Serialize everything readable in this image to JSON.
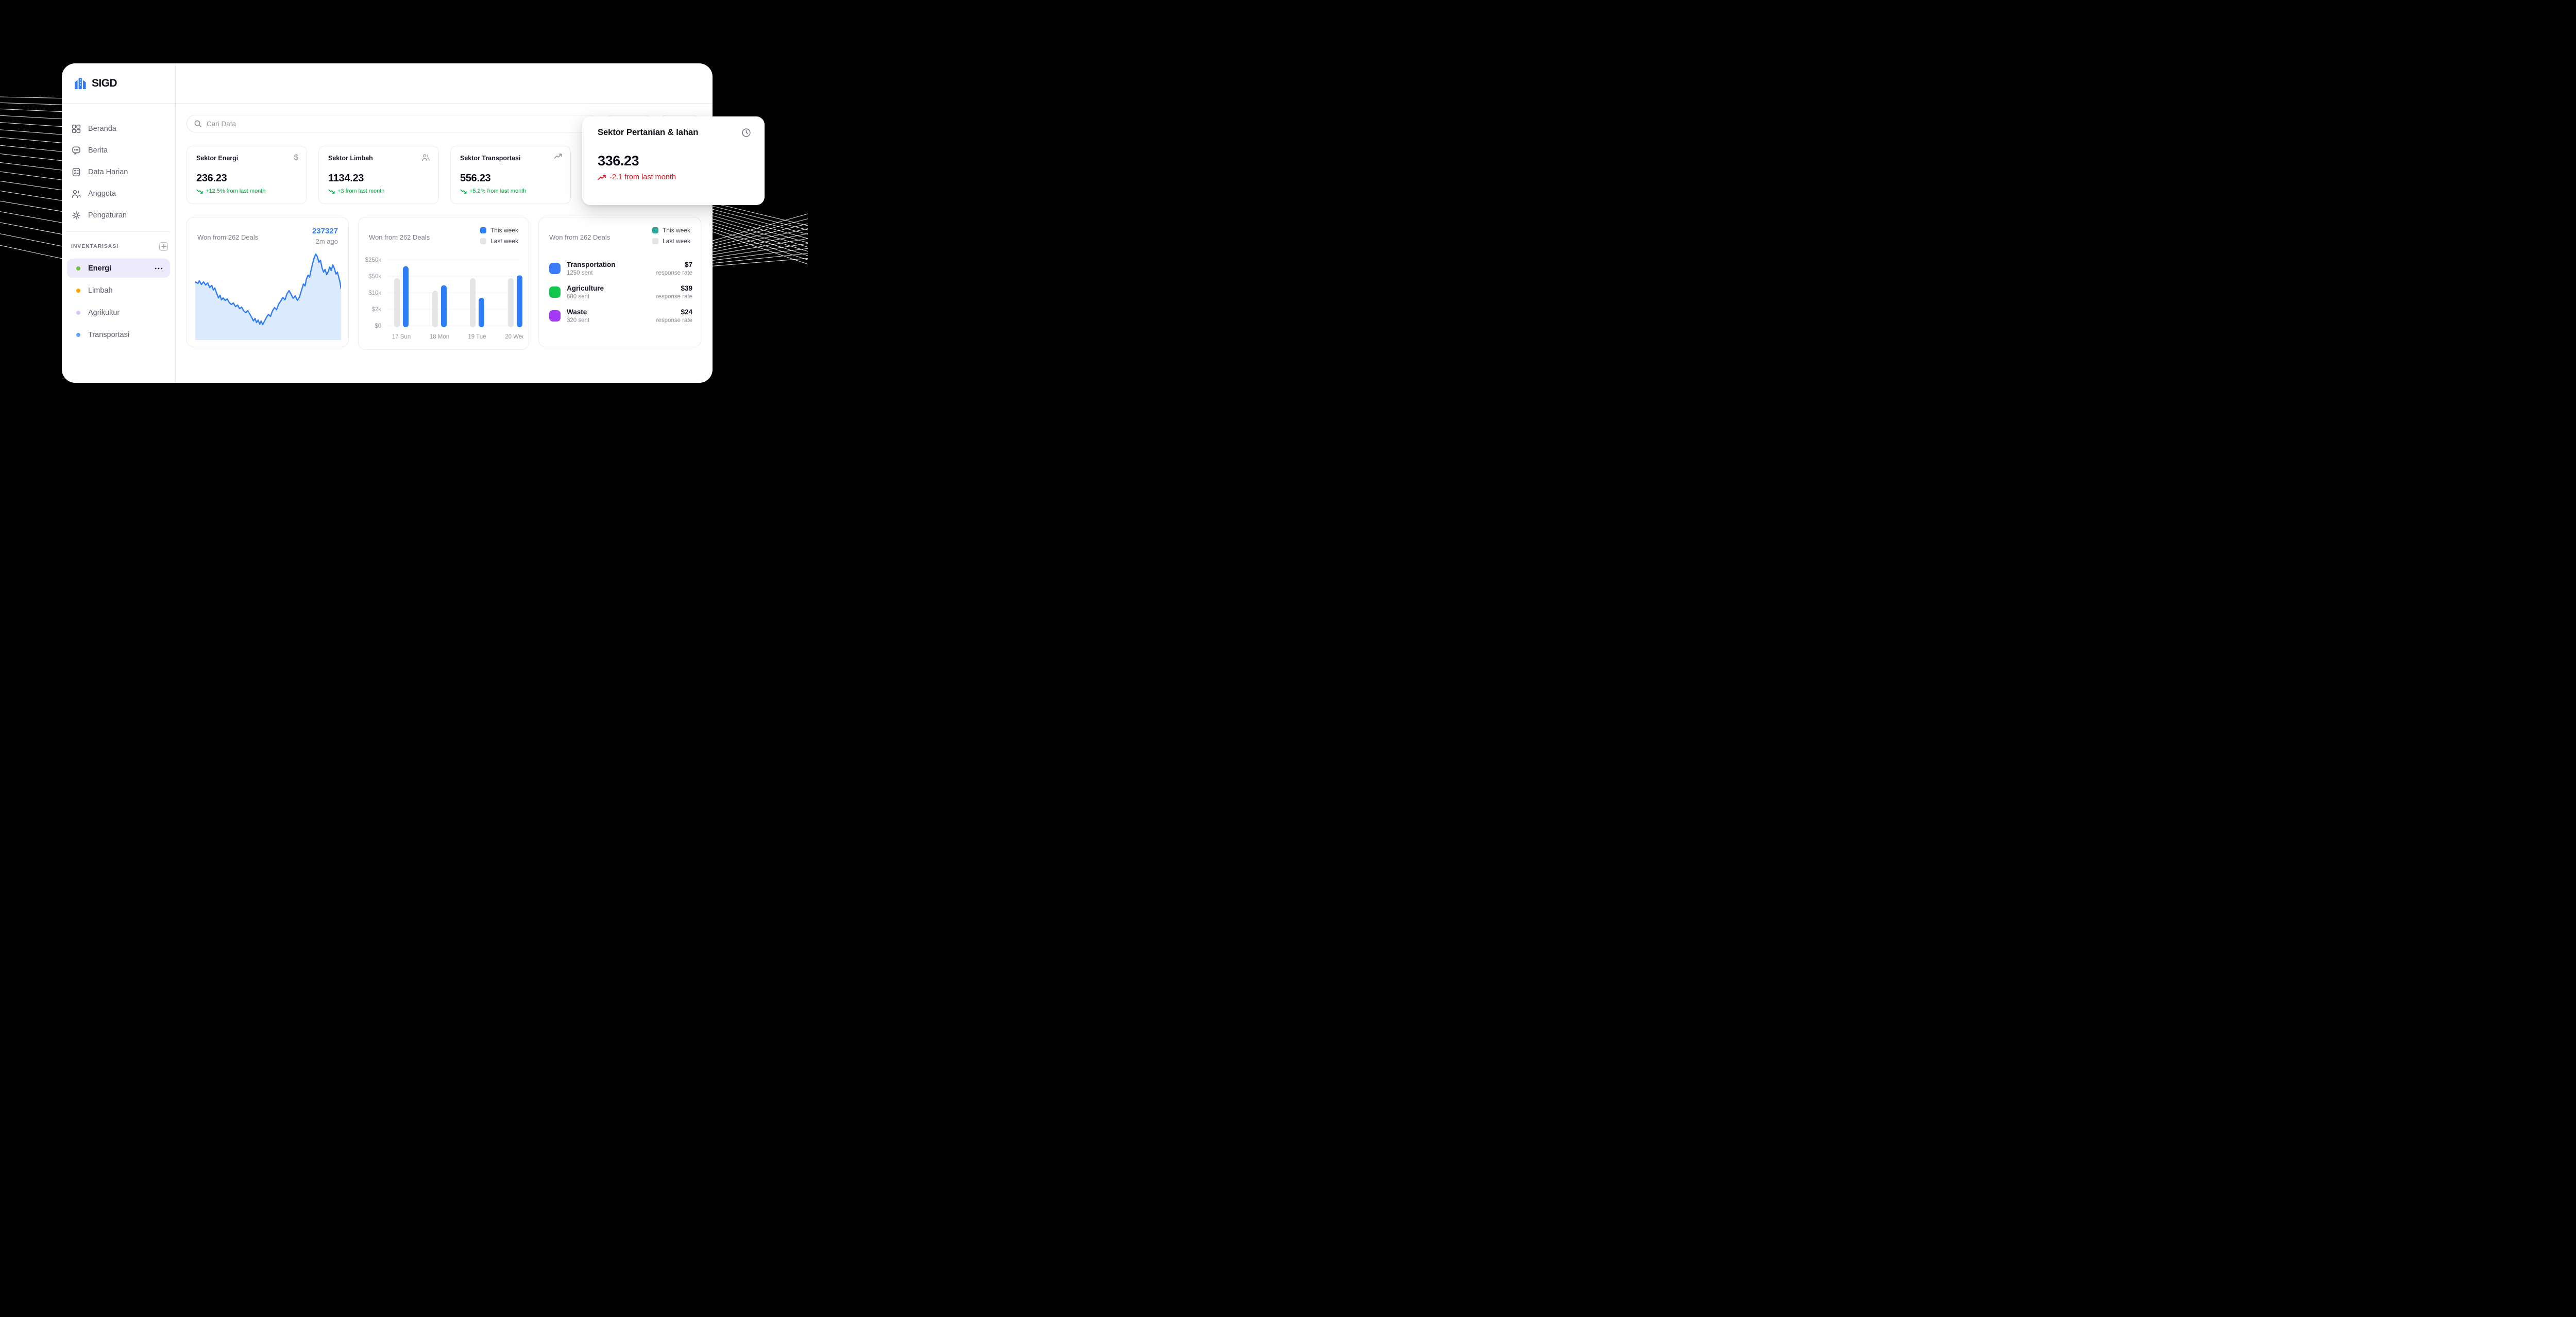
{
  "app": {
    "logo_text": "SIGD"
  },
  "colors": {
    "accent_blue": "#2e7cf6",
    "area_fill": "#dbeafc",
    "trend_green": "#00a63e",
    "trend_red": "#e7111f",
    "legend_teal": "#28a392",
    "legend_gray": "#e4e4e7",
    "bar_gray": "#e4e4e7",
    "active_pill_bg": "#edebfb"
  },
  "sidebar": {
    "nav": [
      {
        "label": "Beranda",
        "icon": "grid-icon"
      },
      {
        "label": "Berita",
        "icon": "chat-icon"
      },
      {
        "label": "Data Harian",
        "icon": "checklist-icon"
      },
      {
        "label": "Anggota",
        "icon": "users-icon"
      },
      {
        "label": "Pengaturan",
        "icon": "gear-icon"
      }
    ],
    "section": {
      "title": "INVENTARISASI",
      "add_icon": "plus-square-icon"
    },
    "inventory": [
      {
        "label": "Energi",
        "dot_color": "#6fbf44",
        "active": true,
        "menu_icon": "ellipsis-icon"
      },
      {
        "label": "Limbah",
        "dot_color": "#ffa403",
        "active": false
      },
      {
        "label": "Agrikultur",
        "dot_color": "#dcc6f9",
        "active": false
      },
      {
        "label": "Transportasi",
        "dot_color": "#66a3f2",
        "active": false
      }
    ]
  },
  "topbar": {
    "search_placeholder": "Cari Data",
    "search_icon": "search-icon"
  },
  "stat_cards": [
    {
      "title": "Sektor Energi",
      "icon": "dollar-icon",
      "value": "236.23",
      "trend": "+12.5% from last month",
      "trend_icon": "trend-down-icon"
    },
    {
      "title": "Sektor Limbah",
      "icon": "users-icon",
      "value": "1134.23",
      "trend": "+3 from last month",
      "trend_icon": "trend-down-icon"
    },
    {
      "title": "Sektor Transportasi",
      "icon": "trend-up-icon",
      "value": "556.23",
      "trend": "+5.2% from last month",
      "trend_icon": "trend-down-icon"
    }
  ],
  "overlay_card": {
    "title": "Sektor Pertanian & lahan",
    "icon": "clock-icon",
    "value": "336.23",
    "trend": "-2.1 from last month",
    "trend_icon": "trend-up-icon"
  },
  "chart_data": [
    {
      "type": "area",
      "title": "Won from 262 Deals",
      "value_label": "237327",
      "time_label": "2m ago",
      "line_color": "#2e7cf6",
      "fill_color": "#dbeafc",
      "note": "unlabeled sparkline; points normalized x,y (y=0 top of plot, 1 bottom)",
      "points": [
        [
          0,
          0.335
        ],
        [
          0.018,
          0.353
        ],
        [
          0.028,
          0.324
        ],
        [
          0.042,
          0.365
        ],
        [
          0.057,
          0.335
        ],
        [
          0.071,
          0.371
        ],
        [
          0.085,
          0.347
        ],
        [
          0.099,
          0.4
        ],
        [
          0.113,
          0.376
        ],
        [
          0.124,
          0.429
        ],
        [
          0.134,
          0.406
        ],
        [
          0.148,
          0.471
        ],
        [
          0.159,
          0.518
        ],
        [
          0.17,
          0.488
        ],
        [
          0.18,
          0.541
        ],
        [
          0.191,
          0.518
        ],
        [
          0.205,
          0.547
        ],
        [
          0.219,
          0.529
        ],
        [
          0.233,
          0.571
        ],
        [
          0.247,
          0.594
        ],
        [
          0.261,
          0.576
        ],
        [
          0.276,
          0.618
        ],
        [
          0.29,
          0.6
        ],
        [
          0.304,
          0.641
        ],
        [
          0.318,
          0.624
        ],
        [
          0.332,
          0.665
        ],
        [
          0.346,
          0.688
        ],
        [
          0.36,
          0.665
        ],
        [
          0.375,
          0.706
        ],
        [
          0.389,
          0.747
        ],
        [
          0.399,
          0.782
        ],
        [
          0.41,
          0.753
        ],
        [
          0.42,
          0.8
        ],
        [
          0.431,
          0.771
        ],
        [
          0.442,
          0.818
        ],
        [
          0.452,
          0.782
        ],
        [
          0.463,
          0.824
        ],
        [
          0.473,
          0.788
        ],
        [
          0.488,
          0.741
        ],
        [
          0.502,
          0.706
        ],
        [
          0.516,
          0.729
        ],
        [
          0.53,
          0.665
        ],
        [
          0.544,
          0.629
        ],
        [
          0.558,
          0.653
        ],
        [
          0.572,
          0.588
        ],
        [
          0.587,
          0.553
        ],
        [
          0.601,
          0.512
        ],
        [
          0.615,
          0.541
        ],
        [
          0.629,
          0.471
        ],
        [
          0.643,
          0.435
        ],
        [
          0.657,
          0.476
        ],
        [
          0.671,
          0.524
        ],
        [
          0.686,
          0.494
        ],
        [
          0.7,
          0.547
        ],
        [
          0.714,
          0.512
        ],
        [
          0.728,
          0.435
        ],
        [
          0.742,
          0.359
        ],
        [
          0.753,
          0.382
        ],
        [
          0.763,
          0.3
        ],
        [
          0.774,
          0.259
        ],
        [
          0.784,
          0.282
        ],
        [
          0.795,
          0.194
        ],
        [
          0.806,
          0.118
        ],
        [
          0.816,
          0.059
        ],
        [
          0.827,
          0.018
        ],
        [
          0.837,
          0.047
        ],
        [
          0.848,
          0.112
        ],
        [
          0.859,
          0.088
        ],
        [
          0.869,
          0.171
        ],
        [
          0.88,
          0.224
        ],
        [
          0.89,
          0.194
        ],
        [
          0.901,
          0.253
        ],
        [
          0.912,
          0.218
        ],
        [
          0.922,
          0.165
        ],
        [
          0.933,
          0.206
        ],
        [
          0.943,
          0.141
        ],
        [
          0.954,
          0.182
        ],
        [
          0.965,
          0.247
        ],
        [
          0.975,
          0.224
        ],
        [
          0.986,
          0.294
        ],
        [
          0.993,
          0.341
        ],
        [
          1,
          0.412
        ]
      ]
    },
    {
      "type": "bar",
      "title": "Won from 262 Deals",
      "legend": [
        {
          "label": "This week",
          "color": "#2e7cf6"
        },
        {
          "label": "Last week",
          "color": "#e4e4e7"
        }
      ],
      "categories": [
        "17 Sun",
        "18 Mon",
        "19 Tue",
        "20 Wed"
      ],
      "y_ticks": [
        "$250k",
        "$50k",
        "$10k",
        "$2k",
        "$0"
      ],
      "tick_values": [
        250000,
        50000,
        10000,
        2000,
        0
      ],
      "series": [
        {
          "name": "Last week",
          "color": "#e4e4e7",
          "values": [
            45000,
            15000,
            45000,
            45000
          ]
        },
        {
          "name": "This week",
          "color": "#2e7cf6",
          "values": [
            170000,
            28000,
            7500,
            60000
          ]
        }
      ]
    },
    {
      "type": "table",
      "title": "Won from 262 Deals",
      "legend": [
        {
          "label": "This week",
          "color": "#28a392"
        },
        {
          "label": "Last week",
          "color": "#e4e4e7"
        }
      ],
      "rows": [
        {
          "name": "Transportation",
          "sent": "1250 sent",
          "value": "$7",
          "note": "response rate",
          "icon_color": "#3b7bf7"
        },
        {
          "name": "Agriculture",
          "sent": "680 sent",
          "value": "$39",
          "note": "response rate",
          "icon_color": "#11c74f"
        },
        {
          "name": "Waste",
          "sent": "320 sent",
          "value": "$24",
          "note": "response rate",
          "icon_color": "#a338f5"
        }
      ]
    }
  ]
}
